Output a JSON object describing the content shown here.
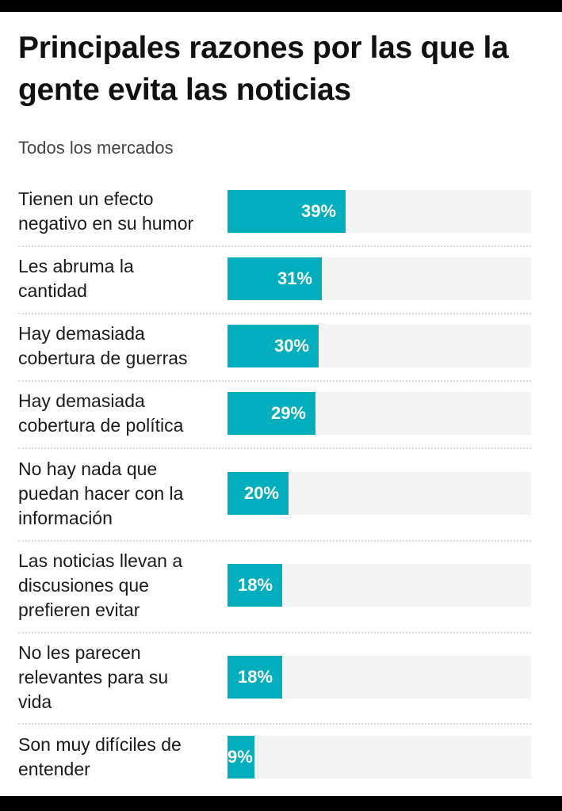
{
  "chart_data": {
    "type": "bar",
    "orientation": "horizontal",
    "title": "Principales razones por las que la gente evita las noticias",
    "subtitle": "Todos los mercados",
    "xlabel": "",
    "ylabel": "",
    "xlim": [
      0,
      100
    ],
    "grid": false,
    "unit": "%",
    "bar_color": "#00aebd",
    "track_color": "#f3f3f3",
    "categories": [
      "Tienen un efecto negativo en su humor",
      "Les abruma la cantidad",
      "Hay demasiada cobertura de guerras",
      "Hay demasiada cobertura de política",
      "No hay nada que puedan hacer con la información",
      "Las noticias llevan a discusiones que prefieren evitar",
      "No les parecen relevantes para su vida",
      "Son muy difíciles de entender"
    ],
    "values": [
      39,
      31,
      30,
      29,
      20,
      18,
      18,
      9
    ],
    "value_labels": [
      "39%",
      "31%",
      "30%",
      "29%",
      "20%",
      "18%",
      "18%",
      "9%"
    ],
    "label_lines": [
      [
        "Tienen un efecto",
        "negativo en su humor"
      ],
      [
        "Les abruma la",
        "cantidad"
      ],
      [
        "Hay demasiada",
        "cobertura de guerras"
      ],
      [
        "Hay demasiada",
        "cobertura de política"
      ],
      [
        "No hay nada que",
        "puedan hacer con la",
        "información"
      ],
      [
        "Las noticias llevan a",
        "discusiones que",
        "prefieren evitar"
      ],
      [
        "No les parecen",
        "relevantes para su",
        "vida"
      ],
      [
        "Son muy difíciles de",
        "entender"
      ]
    ]
  }
}
